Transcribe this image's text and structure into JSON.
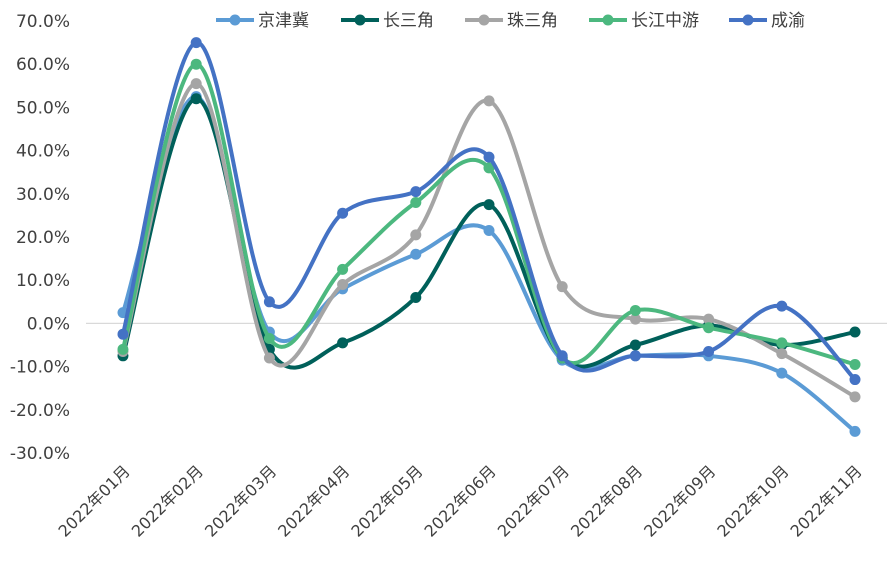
{
  "chart_data": {
    "type": "line",
    "categories": [
      "2022年01月",
      "2022年02月",
      "2022年03月",
      "2022年04月",
      "2022年05月",
      "2022年06月",
      "2022年07月",
      "2022年08月",
      "2022年09月",
      "2022年10月",
      "2022年11月"
    ],
    "series": [
      {
        "name": "京津冀",
        "color": "#5B9BD5",
        "values": [
          2.5,
          52.5,
          -2.0,
          8.0,
          16.0,
          21.5,
          -8.5,
          -7.5,
          -7.5,
          -11.5,
          -25.0
        ]
      },
      {
        "name": "长三角",
        "color": "#00605A",
        "values": [
          -7.5,
          52.0,
          -6.0,
          -4.5,
          6.0,
          27.5,
          -8.0,
          -5.0,
          -0.5,
          -5.0,
          -2.0
        ]
      },
      {
        "name": "珠三角",
        "color": "#A5A5A5",
        "values": [
          -6.5,
          55.5,
          -8.0,
          9.0,
          20.5,
          51.5,
          8.5,
          1.0,
          1.0,
          -7.0,
          -17.0
        ]
      },
      {
        "name": "长江中游",
        "color": "#4CB87F",
        "values": [
          -6.0,
          60.0,
          -3.5,
          12.5,
          28.0,
          36.0,
          -8.0,
          3.0,
          -1.0,
          -4.5,
          -9.5
        ]
      },
      {
        "name": "成渝",
        "color": "#4472C4",
        "values": [
          -2.5,
          65.0,
          5.0,
          25.5,
          30.5,
          38.5,
          -7.5,
          -7.5,
          -6.5,
          4.0,
          -13.0
        ]
      }
    ],
    "y_ticks": [
      "-30.0%",
      "-20.0%",
      "-10.0%",
      "0.0%",
      "10.0%",
      "20.0%",
      "30.0%",
      "40.0%",
      "50.0%",
      "60.0%",
      "70.0%"
    ],
    "ylim": [
      -30,
      70
    ],
    "legend_position": "top",
    "grid": false
  }
}
